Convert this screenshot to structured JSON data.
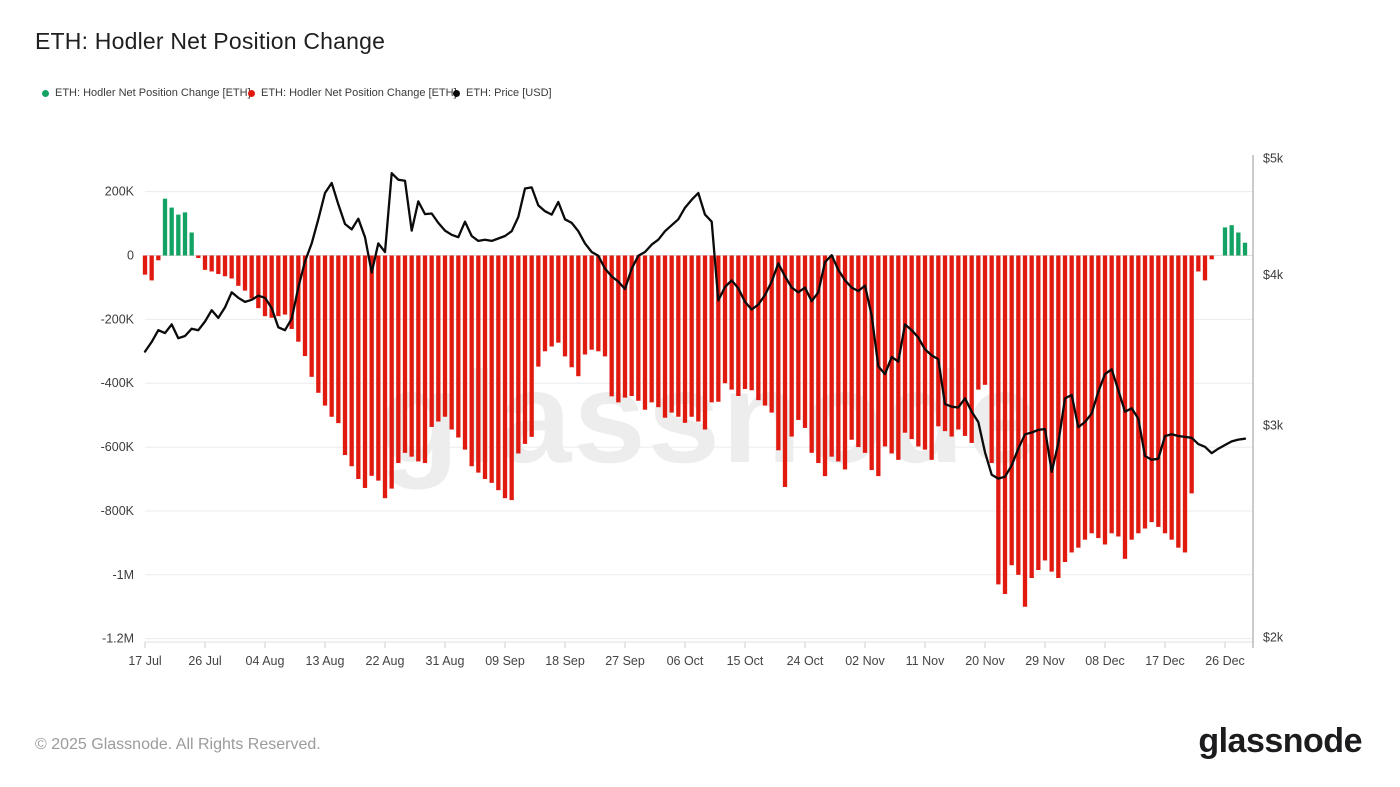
{
  "header": {
    "title": "ETH: Hodler Net Position Change"
  },
  "legend": {
    "items": [
      {
        "label": "ETH: Hodler Net Position Change [ETH]",
        "color": "#12a263"
      },
      {
        "label": "ETH: Hodler Net Position Change [ETH]",
        "color": "#e11a10"
      },
      {
        "label": "ETH: Price [USD]",
        "color": "#0b0b0b"
      }
    ]
  },
  "watermark": "glassnode",
  "footer": {
    "copyright": "© 2025 Glassnode. All Rights Reserved.",
    "brand": "glassnode"
  },
  "chart_data": {
    "type": "bar",
    "title": "ETH: Hodler Net Position Change",
    "grid": true,
    "left_axis": {
      "unit": "ETH",
      "tick_labels": [
        "200K",
        "0",
        "-200K",
        "-400K",
        "-600K",
        "-800K",
        "-1M",
        "-1.2M"
      ],
      "tick_values_k": [
        200,
        0,
        -200,
        -400,
        -600,
        -800,
        -1000,
        -1200
      ]
    },
    "right_axis": {
      "unit": "USD",
      "scale": "log",
      "tick_labels": [
        "$5k",
        "$4k",
        "$3k",
        "$2k"
      ],
      "tick_values": [
        5000,
        4000,
        3000,
        2000
      ],
      "range": [
        2000,
        5000
      ]
    },
    "x_axis": {
      "tick_labels": [
        "17 Jul",
        "26 Jul",
        "04 Aug",
        "13 Aug",
        "22 Aug",
        "31 Aug",
        "09 Sep",
        "18 Sep",
        "27 Sep",
        "06 Oct",
        "15 Oct",
        "24 Oct",
        "02 Nov",
        "11 Nov",
        "20 Nov",
        "29 Nov",
        "08 Dec",
        "17 Dec",
        "26 Dec"
      ],
      "tick_interval_days": 9
    },
    "dates": [
      "17 Jul",
      "18 Jul",
      "19 Jul",
      "20 Jul",
      "21 Jul",
      "22 Jul",
      "23 Jul",
      "24 Jul",
      "25 Jul",
      "26 Jul",
      "27 Jul",
      "28 Jul",
      "29 Jul",
      "30 Jul",
      "31 Jul",
      "01 Aug",
      "02 Aug",
      "03 Aug",
      "04 Aug",
      "05 Aug",
      "06 Aug",
      "07 Aug",
      "08 Aug",
      "09 Aug",
      "10 Aug",
      "11 Aug",
      "12 Aug",
      "13 Aug",
      "14 Aug",
      "15 Aug",
      "16 Aug",
      "17 Aug",
      "18 Aug",
      "19 Aug",
      "20 Aug",
      "21 Aug",
      "22 Aug",
      "23 Aug",
      "24 Aug",
      "25 Aug",
      "26 Aug",
      "27 Aug",
      "28 Aug",
      "29 Aug",
      "30 Aug",
      "31 Aug",
      "01 Sep",
      "02 Sep",
      "03 Sep",
      "04 Sep",
      "05 Sep",
      "06 Sep",
      "07 Sep",
      "08 Sep",
      "09 Sep",
      "10 Sep",
      "11 Sep",
      "12 Sep",
      "13 Sep",
      "14 Sep",
      "15 Sep",
      "16 Sep",
      "17 Sep",
      "18 Sep",
      "19 Sep",
      "20 Sep",
      "21 Sep",
      "22 Sep",
      "23 Sep",
      "24 Sep",
      "25 Sep",
      "26 Sep",
      "27 Sep",
      "28 Sep",
      "29 Sep",
      "30 Sep",
      "01 Oct",
      "02 Oct",
      "03 Oct",
      "04 Oct",
      "05 Oct",
      "06 Oct",
      "07 Oct",
      "08 Oct",
      "09 Oct",
      "10 Oct",
      "11 Oct",
      "12 Oct",
      "13 Oct",
      "14 Oct",
      "15 Oct",
      "16 Oct",
      "17 Oct",
      "18 Oct",
      "19 Oct",
      "20 Oct",
      "21 Oct",
      "22 Oct",
      "23 Oct",
      "24 Oct",
      "25 Oct",
      "26 Oct",
      "27 Oct",
      "28 Oct",
      "29 Oct",
      "30 Oct",
      "31 Oct",
      "01 Nov",
      "02 Nov",
      "03 Nov",
      "04 Nov",
      "05 Nov",
      "06 Nov",
      "07 Nov",
      "08 Nov",
      "09 Nov",
      "10 Nov",
      "11 Nov",
      "12 Nov",
      "13 Nov",
      "14 Nov",
      "15 Nov",
      "16 Nov",
      "17 Nov",
      "18 Nov",
      "19 Nov",
      "20 Nov",
      "21 Nov",
      "22 Nov",
      "23 Nov",
      "24 Nov",
      "25 Nov",
      "26 Nov",
      "27 Nov",
      "28 Nov",
      "29 Nov",
      "30 Nov",
      "01 Dec",
      "02 Dec",
      "03 Dec",
      "04 Dec",
      "05 Dec",
      "06 Dec",
      "07 Dec",
      "08 Dec",
      "09 Dec",
      "10 Dec",
      "11 Dec",
      "12 Dec",
      "13 Dec",
      "14 Dec",
      "15 Dec",
      "16 Dec",
      "17 Dec",
      "18 Dec",
      "19 Dec",
      "20 Dec",
      "21 Dec",
      "22 Dec",
      "23 Dec",
      "24 Dec",
      "25 Dec",
      "26 Dec",
      "27 Dec",
      "28 Dec",
      "29 Dec"
    ],
    "series": [
      {
        "name": "ETH: Hodler Net Position Change [ETH]",
        "type": "bar",
        "unit": "thousand ETH",
        "positive_color": "#12a263",
        "negative_color": "#e11a10",
        "values_k": [
          -60,
          -78,
          -15,
          178,
          150,
          128,
          135,
          72,
          -8,
          -45,
          -50,
          -58,
          -65,
          -72,
          -95,
          -110,
          -135,
          -165,
          -190,
          -195,
          -190,
          -185,
          -230,
          -270,
          -315,
          -380,
          -430,
          -470,
          -505,
          -525,
          -625,
          -660,
          -700,
          -728,
          -690,
          -705,
          -760,
          -730,
          -650,
          -618,
          -630,
          -645,
          -650,
          -537,
          -520,
          -505,
          -545,
          -570,
          -608,
          -660,
          -680,
          -700,
          -712,
          -735,
          -760,
          -766,
          -620,
          -590,
          -568,
          -348,
          -300,
          -285,
          -273,
          -316,
          -350,
          -378,
          -310,
          -295,
          -300,
          -316,
          -441,
          -460,
          -445,
          -440,
          -455,
          -483,
          -460,
          -475,
          -508,
          -492,
          -505,
          -524,
          -505,
          -520,
          -545,
          -460,
          -458,
          -400,
          -420,
          -440,
          -418,
          -422,
          -453,
          -470,
          -492,
          -610,
          -725,
          -567,
          -515,
          -540,
          -618,
          -650,
          -691,
          -630,
          -645,
          -670,
          -577,
          -600,
          -618,
          -672,
          -691,
          -598,
          -620,
          -640,
          -555,
          -575,
          -598,
          -608,
          -640,
          -535,
          -550,
          -567,
          -545,
          -565,
          -587,
          -420,
          -405,
          -650,
          -1030,
          -1060,
          -970,
          -1000,
          -1100,
          -1010,
          -985,
          -955,
          -990,
          -1010,
          -960,
          -930,
          -915,
          -890,
          -870,
          -885,
          -905,
          -870,
          -880,
          -950,
          -890,
          -870,
          -855,
          -835,
          -850,
          -870,
          -890,
          -915,
          -930,
          -745,
          -50,
          -78,
          -12,
          0,
          88,
          95,
          72,
          40
        ]
      },
      {
        "name": "ETH: Price [USD]",
        "type": "line",
        "unit": "USD",
        "color": "#0b0b0b",
        "values": [
          3455,
          3520,
          3600,
          3580,
          3640,
          3545,
          3560,
          3610,
          3600,
          3660,
          3740,
          3685,
          3760,
          3870,
          3830,
          3800,
          3815,
          3845,
          3830,
          3755,
          3620,
          3600,
          3680,
          3905,
          4106,
          4250,
          4450,
          4680,
          4770,
          4580,
          4410,
          4365,
          4455,
          4300,
          4020,
          4250,
          4180,
          4860,
          4800,
          4790,
          4355,
          4605,
          4495,
          4500,
          4420,
          4355,
          4320,
          4300,
          4430,
          4310,
          4270,
          4280,
          4270,
          4290,
          4310,
          4350,
          4470,
          4720,
          4730,
          4570,
          4520,
          4490,
          4600,
          4450,
          4420,
          4350,
          4250,
          4180,
          4150,
          4050,
          3990,
          3950,
          3895,
          4050,
          4150,
          4180,
          4240,
          4280,
          4350,
          4400,
          4450,
          4550,
          4620,
          4680,
          4490,
          4430,
          3810,
          3910,
          3960,
          3900,
          3800,
          3745,
          3780,
          3850,
          3950,
          4090,
          3990,
          3905,
          3870,
          3905,
          3805,
          3870,
          4100,
          4155,
          4040,
          3960,
          3905,
          3880,
          3920,
          3700,
          3360,
          3310,
          3420,
          3390,
          3640,
          3600,
          3550,
          3470,
          3430,
          3405,
          3125,
          3110,
          3105,
          3160,
          3080,
          3020,
          2850,
          2730,
          2710,
          2720,
          2780,
          2870,
          2950,
          2960,
          2975,
          2980,
          2745,
          2900,
          3160,
          3180,
          2990,
          3020,
          3070,
          3200,
          3310,
          3340,
          3210,
          3080,
          3100,
          3040,
          2830,
          2810,
          2815,
          2940,
          2950,
          2940,
          2935,
          2930,
          2895,
          2880,
          2845,
          2870,
          2890,
          2910,
          2920,
          2925
        ]
      }
    ]
  }
}
